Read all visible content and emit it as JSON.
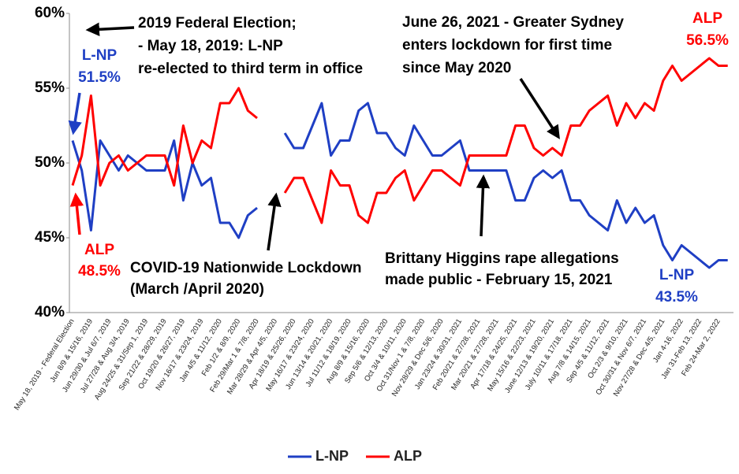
{
  "chart_data": {
    "type": "line",
    "categories": [
      "May 18, 2019 - Federal Election",
      null,
      "Jun 8/9 & 15/16, 2019",
      null,
      "Jun 29/30 & Jul 6/7, 2019",
      null,
      "Jul 27/28 & Aug 3/4, 2019",
      null,
      "Aug 24/25 & 31/Sep 1, 2019",
      null,
      "Sep 21/22 & 28/29, 2019",
      null,
      "Oct 19/20 & 26/27, 2019",
      null,
      "Nov 16/17 & 23/24, 2019",
      null,
      "Jan 4/5 & 11/12, 2020",
      null,
      "Feb 1/2 & 8/9, 2020",
      null,
      "Feb 29/Mar 1 & 7/8, 2020",
      null,
      "Mar 28/29 & Apr 4/5, 2020",
      null,
      "Apr 18/19 & 25/26, 2020",
      null,
      "May 16/17 & 23/24, 2020",
      null,
      "Jun 13/14 & 20/21, 2020",
      null,
      "Jul 11/12 & 18/19, 2020",
      null,
      "Aug 8/9 & 15/16, 2020",
      null,
      "Sep 5/6 & 12/13, 2020",
      null,
      "Oct 3/4 & 10/11, 2020",
      null,
      "Oct 31/Nov 1 & 7/8, 2020",
      null,
      "Nov 28/29 & Dec 5/6, 2020",
      null,
      "Jan 23/24 & 30/31, 2021",
      null,
      "Feb 20/21 & 27/28, 2021",
      null,
      "Mar 20/21 & 27/28, 2021",
      null,
      "Apr 17/18 & 24/25, 2021",
      null,
      "May 15/16 & 22/23, 2021",
      null,
      "June 12/13 & 19/20, 2021",
      null,
      "July 10/11 & 17/18, 2021",
      null,
      "Aug 7/8 & 14/15, 2021",
      null,
      "Sep 4/5 & 11/12, 2021",
      null,
      "Oct 2/3 & 9/10, 2021",
      null,
      "Oct 30/31 & Nov 6/7, 2021",
      null,
      "Nov 27/28 & Dec 4/5, 2021",
      null,
      "Jan 4-16, 2022",
      null,
      "Jan 31-Feb 13, 2022",
      null,
      "Feb 24-Mar 2, 2022",
      null
    ],
    "series": [
      {
        "name": "L-NP",
        "color": "#1f3fc4",
        "values": [
          51.5,
          49.5,
          45.5,
          51.5,
          50.5,
          49.5,
          50.5,
          50,
          49.5,
          49.5,
          49.5,
          51.5,
          47.5,
          50,
          48.5,
          49,
          46,
          46,
          45,
          46.5,
          47,
          null,
          null,
          52,
          51,
          51,
          52.5,
          54,
          50.5,
          51.5,
          51.5,
          53.5,
          54,
          52,
          52,
          51,
          50.5,
          52.5,
          51.5,
          50.5,
          50.5,
          51,
          51.5,
          49.5,
          49.5,
          49.5,
          49.5,
          49.5,
          47.5,
          47.5,
          49,
          49.5,
          49,
          49.5,
          47.5,
          47.5,
          46.5,
          46,
          45.5,
          47.5,
          46,
          47,
          46,
          46.5,
          44.5,
          43.5,
          44.5,
          44,
          43.5,
          43,
          43.5,
          43.5
        ]
      },
      {
        "name": "ALP",
        "color": "#ff0000",
        "values": [
          48.5,
          50.5,
          54.5,
          48.5,
          50,
          50.5,
          49.5,
          50,
          50.5,
          50.5,
          50.5,
          48.5,
          52.5,
          50,
          51.5,
          51,
          54,
          54,
          55,
          53.5,
          53,
          null,
          null,
          48,
          49,
          49,
          47.5,
          46,
          49.5,
          48.5,
          48.5,
          46.5,
          46,
          48,
          48,
          49,
          49.5,
          47.5,
          48.5,
          49.5,
          49.5,
          49,
          48.5,
          50.5,
          50.5,
          50.5,
          50.5,
          50.5,
          52.5,
          52.5,
          51,
          50.5,
          51,
          50.5,
          52.5,
          52.5,
          53.5,
          54,
          54.5,
          52.5,
          54,
          53,
          54,
          53.5,
          55.5,
          56.5,
          55.5,
          56,
          56.5,
          57,
          56.5,
          56.5
        ]
      }
    ],
    "ylim": [
      40,
      60
    ],
    "yticks": [
      {
        "value": 40,
        "label": "40%"
      },
      {
        "value": 45,
        "label": "45%"
      },
      {
        "value": 50,
        "label": "50%"
      },
      {
        "value": 55,
        "label": "55%"
      },
      {
        "value": 60,
        "label": "60%"
      }
    ],
    "grid": false,
    "legend": "bottom",
    "annotations": [
      {
        "lines": [
          "2019 Federal Election;",
          "- May 18, 2019: L-NP",
          "re-elected to third term in office"
        ],
        "color": "#000000"
      },
      {
        "lines": [
          "June 26, 2021 - Greater Sydney",
          "enters lockdown for first time",
          "since May 2020"
        ],
        "color": "#000000"
      },
      {
        "lines": [
          "COVID-19 Nationwide Lockdown",
          "(March /April 2020)"
        ],
        "color": "#000000"
      },
      {
        "lines": [
          "Brittany Higgins rape allegations",
          "made public - February 15, 2021"
        ],
        "color": "#000000"
      },
      {
        "lines": [
          "L-NP",
          "51.5%"
        ],
        "color": "#1f3fc4"
      },
      {
        "lines": [
          "ALP",
          "48.5%"
        ],
        "color": "#ff0000"
      },
      {
        "lines": [
          "L-NP",
          "43.5%"
        ],
        "color": "#1f3fc4"
      },
      {
        "lines": [
          "ALP",
          "56.5%"
        ],
        "color": "#ff0000"
      }
    ]
  }
}
